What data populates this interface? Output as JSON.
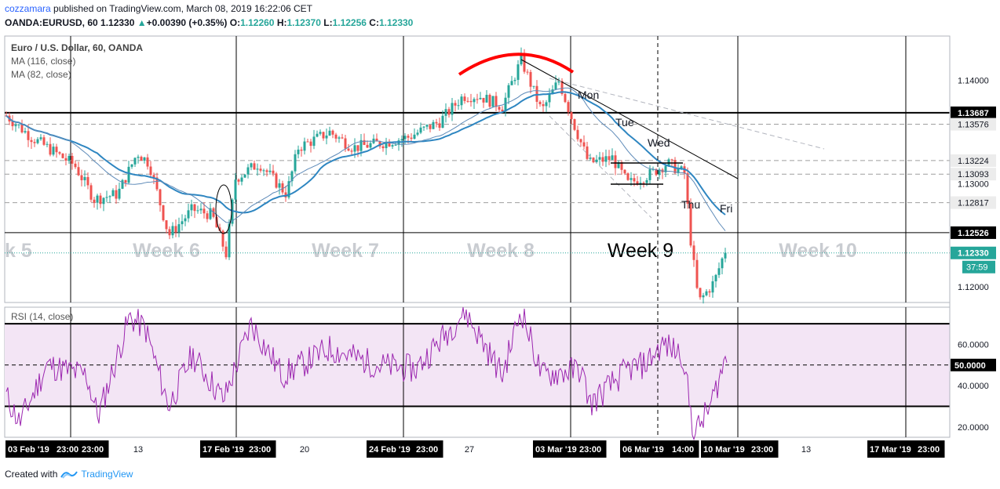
{
  "header": {
    "user": "cozzamara",
    "published_text": "published on TradingView.com, March 08, 2019 16:22:06 CET",
    "symbol": "OANDA:EURUSD, 60",
    "last": "1.12330",
    "arrow": "▲",
    "change": "+0.00390 (+0.35%)",
    "o_label": "O:",
    "o": "1.12260",
    "h_label": "H:",
    "h": "1.12370",
    "l_label": "L:",
    "l": "1.12256",
    "c_label": "C:",
    "c": "1.12330"
  },
  "legend": {
    "title": "Euro / U.S. Dollar, 60, OANDA",
    "ma1": "MA (116, close)",
    "ma2": "MA (82, close)",
    "rsi": "RSI (14, close)"
  },
  "footer": {
    "created_with": "Created with",
    "brand": "TradingView"
  },
  "colors": {
    "up": "#26a69a",
    "down": "#ef5350",
    "ma_slow": "#2e86c1",
    "ma_fast": "#5d8ab8",
    "rsi": "#9c27b0",
    "rsi_band": "#f3e5f5",
    "arc": "#ff0000",
    "accent": "#26a69a"
  },
  "chart_data": [
    {
      "type": "candlestick",
      "title": "Euro / U.S. Dollar, 60, OANDA",
      "ylim": [
        1.1185,
        1.1443
      ],
      "y_ticks": [
        "1.14000",
        "1.13000",
        "1.12000"
      ],
      "price_labels": [
        {
          "value": 1.13687,
          "text": "1.13687",
          "style": "dark"
        },
        {
          "value": 1.13576,
          "text": "1.13576",
          "style": "light"
        },
        {
          "value": 1.13224,
          "text": "1.13224",
          "style": "light"
        },
        {
          "value": 1.13093,
          "text": "1.13093",
          "style": "light"
        },
        {
          "value": 1.12817,
          "text": "1.12817",
          "style": "light"
        },
        {
          "value": 1.12526,
          "text": "1.12526",
          "style": "dark"
        },
        {
          "value": 1.1233,
          "text": "1.12330",
          "style": "green"
        }
      ],
      "countdown": "37:59",
      "x_ticks": [
        {
          "text": "03 Feb '19",
          "boxed": true
        },
        {
          "text": "23:00",
          "boxed": true
        },
        {
          "text": "23:00",
          "boxed": true
        },
        {
          "text": "13",
          "boxed": false
        },
        {
          "text": "17 Feb '19",
          "boxed": true
        },
        {
          "text": "23:00",
          "boxed": true
        },
        {
          "text": "20",
          "boxed": false
        },
        {
          "text": "24 Feb '19",
          "boxed": true
        },
        {
          "text": "23:00",
          "boxed": true
        },
        {
          "text": "27",
          "boxed": false
        },
        {
          "text": "03 Mar '19",
          "boxed": true
        },
        {
          "text": "23:00",
          "boxed": true
        },
        {
          "text": "06 Mar '19",
          "boxed": true
        },
        {
          "text": "14:00",
          "boxed": true
        },
        {
          "text": "10 Mar '19",
          "boxed": true
        },
        {
          "text": "23:00",
          "boxed": true
        },
        {
          "text": "13",
          "boxed": false
        },
        {
          "text": "17 Mar '19",
          "boxed": true
        },
        {
          "text": "23:00",
          "boxed": true
        }
      ],
      "week_labels": [
        "k 5",
        "Week 6",
        "Week 7",
        "Week 8",
        "Week 9",
        "Week 10"
      ],
      "day_labels": [
        "Mon",
        "Tue",
        "Wed",
        "Thu",
        "Fri"
      ],
      "horizontal_levels": [
        1.13687,
        1.12526
      ],
      "dashed_levels": [
        1.13576,
        1.13224,
        1.13093,
        1.12817
      ],
      "key_prices": [
        {
          "label": "start",
          "price": 1.1366
        },
        {
          "label": "week6_low",
          "price": 1.1235
        },
        {
          "label": "week7_open",
          "price": 1.131
        },
        {
          "label": "week8_high",
          "price": 1.142
        },
        {
          "label": "week9_wed",
          "price": 1.1315
        },
        {
          "label": "week9_low",
          "price": 1.118
        },
        {
          "label": "last",
          "price": 1.1233
        }
      ]
    },
    {
      "type": "line",
      "title": "RSI (14, close)",
      "ylim": [
        15,
        78
      ],
      "y_ticks": [
        "60.0000",
        "40.0000",
        "20.0000"
      ],
      "levels": [
        70,
        50,
        30
      ],
      "level_label": "50.0000",
      "key_values": [
        {
          "label": "week6_peak",
          "value": 73
        },
        {
          "label": "week8_peak",
          "value": 77
        },
        {
          "label": "week9_low",
          "value": 16
        },
        {
          "label": "last",
          "value": 55
        }
      ]
    }
  ]
}
